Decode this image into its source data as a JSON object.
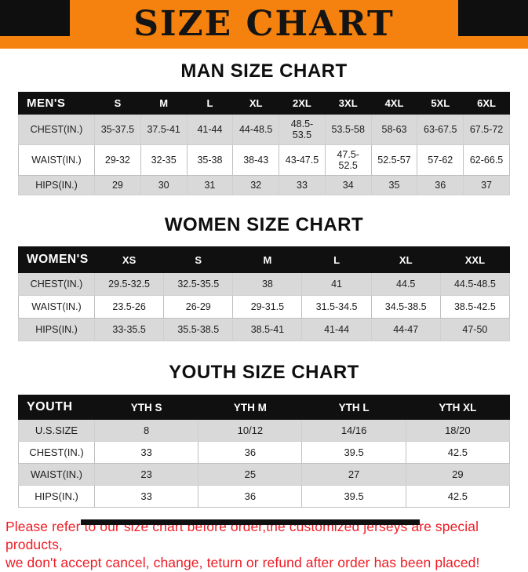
{
  "banner": {
    "title": "SIZE CHART",
    "bg_color": "#f5820e",
    "text_color": "#141414"
  },
  "sections": {
    "man": {
      "title": "MAN SIZE CHART",
      "table": {
        "header": [
          "MEN'S",
          "S",
          "M",
          "L",
          "XL",
          "2XL",
          "3XL",
          "4XL",
          "5XL",
          "6XL"
        ],
        "rows": [
          [
            "CHEST(IN.)",
            "35-37.5",
            "37.5-41",
            "41-44",
            "44-48.5",
            "48.5-53.5",
            "53.5-58",
            "58-63",
            "63-67.5",
            "67.5-72"
          ],
          [
            "WAIST(IN.)",
            "29-32",
            "32-35",
            "35-38",
            "38-43",
            "43-47.5",
            "47.5-52.5",
            "52.5-57",
            "57-62",
            "62-66.5"
          ],
          [
            "HIPS(IN.)",
            "29",
            "30",
            "31",
            "32",
            "33",
            "34",
            "35",
            "36",
            "37"
          ]
        ]
      }
    },
    "women": {
      "title": "WOMEN SIZE CHART",
      "table": {
        "header": [
          "WOMEN'S",
          "XS",
          "S",
          "M",
          "L",
          "XL",
          "XXL"
        ],
        "rows": [
          [
            "CHEST(IN.)",
            "29.5-32.5",
            "32.5-35.5",
            "38",
            "41",
            "44.5",
            "44.5-48.5"
          ],
          [
            "WAIST(IN.)",
            "23.5-26",
            "26-29",
            "29-31.5",
            "31.5-34.5",
            "34.5-38.5",
            "38.5-42.5"
          ],
          [
            "HIPS(IN.)",
            "33-35.5",
            "35.5-38.5",
            "38.5-41",
            "41-44",
            "44-47",
            "47-50"
          ]
        ]
      }
    },
    "youth": {
      "title": "YOUTH SIZE CHART",
      "table": {
        "header": [
          "YOUTH",
          "YTH S",
          "YTH M",
          "YTH L",
          "YTH XL"
        ],
        "rows": [
          [
            "U.S.SIZE",
            "8",
            "10/12",
            "14/16",
            "18/20"
          ],
          [
            "CHEST(IN.)",
            "33",
            "36",
            "39.5",
            "42.5"
          ],
          [
            "WAIST(IN.)",
            "23",
            "25",
            "27",
            "29"
          ],
          [
            "HIPS(IN.)",
            "33",
            "36",
            "39.5",
            "42.5"
          ]
        ]
      }
    }
  },
  "footer": {
    "line1": "Please refer to our size chart before order,the customized jerseys are special products,",
    "line2": "we don't accept cancel, change, teturn or refund after order has been placed!",
    "text_color": "#ee1c25"
  }
}
